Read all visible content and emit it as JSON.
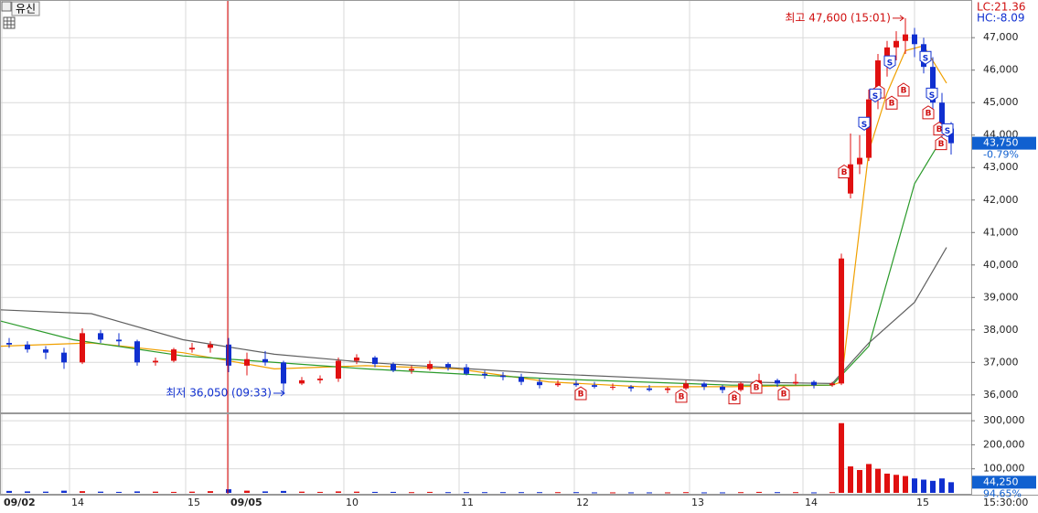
{
  "symbol": "유신",
  "chart_data": [
    {
      "type": "candlestick",
      "x": [
        1,
        3,
        5,
        7,
        9,
        11,
        13,
        15,
        17,
        19,
        21,
        23,
        25,
        27,
        29,
        31,
        33,
        35,
        37,
        39,
        41,
        43,
        45,
        47,
        49,
        51,
        53,
        55,
        57,
        59,
        61,
        63,
        65,
        67,
        69,
        71,
        73,
        75,
        77,
        79,
        81,
        83,
        85,
        87,
        89,
        91,
        92,
        93,
        94,
        95,
        96,
        97,
        98,
        99,
        100,
        101,
        102,
        103,
        104
      ],
      "open": [
        37600,
        37550,
        37400,
        37300,
        37000,
        37900,
        37700,
        37650,
        37000,
        37050,
        37400,
        37450,
        37550,
        36900,
        37100,
        37000,
        36350,
        36450,
        36500,
        37050,
        37150,
        36950,
        36750,
        36800,
        36950,
        36850,
        36650,
        36600,
        36550,
        36400,
        36300,
        36350,
        36300,
        36250,
        36250,
        36200,
        36150,
        36200,
        36350,
        36250,
        36150,
        36350,
        36450,
        36350,
        36400,
        36300,
        36350,
        42200,
        43100,
        43300,
        45100,
        46300,
        46700,
        46900,
        47100,
        46800,
        46100,
        45000,
        44200
      ],
      "high": [
        37750,
        37650,
        37500,
        37450,
        38050,
        38000,
        37900,
        37700,
        37150,
        37450,
        37600,
        37650,
        37750,
        37300,
        37350,
        37050,
        36550,
        36600,
        37150,
        37250,
        37200,
        37000,
        36900,
        37050,
        37000,
        36950,
        36750,
        36700,
        36650,
        36500,
        36450,
        36450,
        36400,
        36350,
        36300,
        36300,
        36250,
        36450,
        36400,
        36300,
        36400,
        36650,
        36500,
        36650,
        36450,
        36400,
        40350,
        44050,
        44000,
        45400,
        46500,
        46900,
        47200,
        47600,
        47300,
        47000,
        46400,
        45300,
        44400
      ],
      "low": [
        37450,
        37300,
        37100,
        36800,
        36950,
        37600,
        37500,
        36900,
        36900,
        37000,
        37300,
        37300,
        36700,
        36600,
        36900,
        36050,
        36300,
        36350,
        36400,
        36950,
        36850,
        36700,
        36650,
        36750,
        36750,
        36600,
        36500,
        36450,
        36300,
        36200,
        36250,
        36250,
        36200,
        36150,
        36100,
        36100,
        36050,
        36150,
        36150,
        36050,
        36100,
        36300,
        36250,
        36300,
        36200,
        36250,
        36300,
        42050,
        42800,
        43200,
        44800,
        45800,
        46300,
        46500,
        46400,
        45900,
        44700,
        43900,
        43400
      ],
      "close": [
        37550,
        37400,
        37300,
        37000,
        37900,
        37700,
        37650,
        37000,
        37050,
        37400,
        37450,
        37550,
        36900,
        37100,
        37000,
        36350,
        36450,
        36500,
        37050,
        37150,
        36950,
        36750,
        36800,
        36950,
        36850,
        36650,
        36600,
        36550,
        36400,
        36300,
        36350,
        36300,
        36250,
        36250,
        36200,
        36150,
        36200,
        36350,
        36250,
        36150,
        36350,
        36450,
        36350,
        36400,
        36300,
        36350,
        40200,
        43100,
        43300,
        45100,
        46300,
        46700,
        46900,
        47100,
        46800,
        46100,
        45000,
        44200,
        43750
      ],
      "up_color": "#e01010",
      "down_color": "#1030d0",
      "xlim": [
        0,
        106.2
      ],
      "ylim": [
        35460,
        48160
      ],
      "grid": true,
      "yticks": [
        {
          "value": 36000,
          "label": "36,000"
        },
        {
          "value": 37000,
          "label": "37,000"
        },
        {
          "value": 38000,
          "label": "38,000"
        },
        {
          "value": 39000,
          "label": "39,000"
        },
        {
          "value": 40000,
          "label": "40,000"
        },
        {
          "value": 41000,
          "label": "41,000"
        },
        {
          "value": 42000,
          "label": "42,000"
        },
        {
          "value": 43000,
          "label": "43,000"
        },
        {
          "value": 44000,
          "label": "44,000"
        },
        {
          "value": 45000,
          "label": "45,000"
        },
        {
          "value": 46000,
          "label": "46,000"
        },
        {
          "value": 47000,
          "label": "47,000"
        }
      ],
      "lines": [
        {
          "color": "#f0a000",
          "x": [
            0,
            10,
            20,
            30,
            40,
            50,
            60,
            70,
            80,
            91,
            92,
            95,
            97,
            99,
            101,
            103.5
          ],
          "values": [
            37500,
            37600,
            37300,
            36800,
            36900,
            36800,
            36400,
            36250,
            36250,
            36300,
            36400,
            43500,
            45300,
            46600,
            46750,
            45600
          ]
        },
        {
          "color": "#2a9a2a",
          "x": [
            0,
            8,
            20,
            40,
            60,
            80,
            91,
            95,
            100,
            103
          ],
          "values": [
            38280,
            37700,
            37200,
            36800,
            36500,
            36300,
            36300,
            37500,
            42500,
            43900
          ]
        },
        {
          "color": "#606060",
          "x": [
            0,
            10,
            20,
            30,
            40,
            60,
            80,
            91,
            95,
            100,
            103.5
          ],
          "values": [
            38620,
            38500,
            37700,
            37250,
            37000,
            36650,
            36400,
            36350,
            37600,
            38850,
            40540
          ]
        }
      ],
      "signals": [
        {
          "x": 63.5,
          "y": 36050,
          "label": "B"
        },
        {
          "x": 74.5,
          "y": 35970,
          "label": "B"
        },
        {
          "x": 80.3,
          "y": 35920,
          "label": "B"
        },
        {
          "x": 82.7,
          "y": 36250,
          "label": "B"
        },
        {
          "x": 85.7,
          "y": 36050,
          "label": "B"
        },
        {
          "x": 92.3,
          "y": 42880,
          "label": "B"
        },
        {
          "x": 96.1,
          "y": 45340,
          "label": "B"
        },
        {
          "x": 97.5,
          "y": 45000,
          "label": "B"
        },
        {
          "x": 98.8,
          "y": 45400,
          "label": "B"
        },
        {
          "x": 101.5,
          "y": 44700,
          "label": "B"
        },
        {
          "x": 102.7,
          "y": 44200,
          "label": "B"
        },
        {
          "x": 102.9,
          "y": 43750,
          "label": "B"
        },
        {
          "x": 94.5,
          "y": 44350,
          "label": "S"
        },
        {
          "x": 95.7,
          "y": 45220,
          "label": "S"
        },
        {
          "x": 97.3,
          "y": 46240,
          "label": "S"
        },
        {
          "x": 101.2,
          "y": 46380,
          "label": "S"
        },
        {
          "x": 101.9,
          "y": 45250,
          "label": "S"
        },
        {
          "x": 103.6,
          "y": 44150,
          "label": "S"
        }
      ],
      "annotations": [
        {
          "text": "최고 47,600 (15:01)",
          "x": 99,
          "y": 47600,
          "color": "#d01010"
        },
        {
          "text": "최저 36,050 (09:33)",
          "x": 31.3,
          "y": 36050,
          "color": "#1030d0"
        }
      ],
      "lc_label": "LC:21.36",
      "hc_label": "HC:-8.09",
      "last_price": {
        "value": 43750,
        "label": "43,750"
      },
      "change_label": "-0.79%"
    },
    {
      "type": "bar",
      "x": [
        1,
        3,
        5,
        7,
        9,
        11,
        13,
        15,
        17,
        19,
        21,
        23,
        25,
        27,
        29,
        31,
        33,
        35,
        37,
        39,
        41,
        43,
        45,
        47,
        49,
        51,
        53,
        55,
        57,
        59,
        61,
        63,
        65,
        67,
        69,
        71,
        73,
        75,
        77,
        79,
        81,
        83,
        85,
        87,
        89,
        91,
        92,
        93,
        94,
        95,
        96,
        97,
        98,
        99,
        100,
        101,
        102,
        103,
        104
      ],
      "values": [
        8000,
        6000,
        5000,
        9000,
        7000,
        5000,
        4000,
        6000,
        5000,
        4000,
        5000,
        7000,
        15000,
        9000,
        6000,
        8000,
        5000,
        4000,
        6000,
        5000,
        4000,
        4000,
        3000,
        4000,
        3000,
        3000,
        3000,
        3000,
        3000,
        3000,
        3000,
        3000,
        2000,
        2000,
        2000,
        2000,
        2000,
        3000,
        2000,
        2000,
        3000,
        4000,
        3000,
        3000,
        2000,
        3000,
        290000,
        110000,
        95000,
        120000,
        100000,
        80000,
        75000,
        70000,
        60000,
        55000,
        50000,
        60000,
        44250
      ],
      "xlim": [
        0,
        106.2
      ],
      "ylim": [
        -7700,
        330800
      ],
      "grid": true,
      "yticks": [
        {
          "value": 100000,
          "label": "100,000"
        },
        {
          "value": 200000,
          "label": "200,000"
        },
        {
          "value": 300000,
          "label": "300,000"
        }
      ],
      "xticks": [
        {
          "value": 0.2,
          "label": "09/02"
        },
        {
          "value": 7.6,
          "label": "14"
        },
        {
          "value": 20.3,
          "label": "15"
        },
        {
          "value": 25,
          "label": "09/05"
        },
        {
          "value": 37.6,
          "label": "10"
        },
        {
          "value": 50.2,
          "label": "11"
        },
        {
          "value": 62.8,
          "label": "12"
        },
        {
          "value": 75.4,
          "label": "13"
        },
        {
          "value": 87.8,
          "label": "14"
        },
        {
          "value": 100,
          "label": "15"
        }
      ],
      "last": {
        "value": 44250,
        "label": "44,250"
      },
      "ratio_label": "94.65%",
      "time_label": "15:30:00"
    }
  ]
}
